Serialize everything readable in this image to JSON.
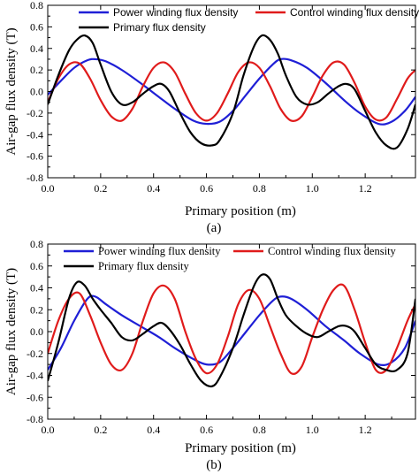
{
  "chart_data": [
    {
      "id": "a",
      "type": "line",
      "caption": "(a)",
      "xlabel": "Primary position (m)",
      "ylabel": "Air-gap flux density (T)",
      "xlim": [
        0,
        1.39
      ],
      "ylim": [
        -0.8,
        0.8
      ],
      "xticks": [
        0.0,
        0.2,
        0.4,
        0.6,
        0.8,
        1.0,
        1.2
      ],
      "xtick_labels": [
        "0.0",
        "0.2",
        "0.4",
        "0.6",
        "0.8",
        "1.0",
        "1.2"
      ],
      "yticks": [
        -0.8,
        -0.6,
        -0.4,
        -0.2,
        0.0,
        0.2,
        0.4,
        0.6,
        0.8
      ],
      "ytick_labels": [
        "-0.8",
        "-0.6",
        "-0.4",
        "-0.2",
        "0.0",
        "0.2",
        "0.4",
        "0.6",
        "0.8"
      ],
      "grid": false,
      "legend_placement": "top",
      "series": [
        {
          "name": "Power winding flux density",
          "color": "#1f1fd6",
          "x": [
            0.0,
            0.05,
            0.1,
            0.15,
            0.18,
            0.22,
            0.28,
            0.35,
            0.42,
            0.48,
            0.55,
            0.6,
            0.65,
            0.7,
            0.75,
            0.8,
            0.85,
            0.88,
            0.92,
            0.98,
            1.05,
            1.12,
            1.18,
            1.25,
            1.3,
            1.35,
            1.39
          ],
          "y": [
            -0.03,
            0.1,
            0.22,
            0.29,
            0.3,
            0.28,
            0.2,
            0.08,
            -0.05,
            -0.16,
            -0.27,
            -0.3,
            -0.28,
            -0.18,
            -0.03,
            0.12,
            0.25,
            0.3,
            0.29,
            0.22,
            0.08,
            -0.08,
            -0.2,
            -0.3,
            -0.28,
            -0.18,
            -0.05
          ]
        },
        {
          "name": "Control winding flux density",
          "color": "#e01b1b",
          "x": [
            0.0,
            0.04,
            0.08,
            0.12,
            0.16,
            0.2,
            0.24,
            0.28,
            0.32,
            0.36,
            0.4,
            0.44,
            0.48,
            0.52,
            0.56,
            0.6,
            0.64,
            0.68,
            0.72,
            0.76,
            0.8,
            0.84,
            0.88,
            0.92,
            0.96,
            1.0,
            1.04,
            1.08,
            1.12,
            1.16,
            1.2,
            1.24,
            1.28,
            1.32,
            1.36,
            1.39
          ],
          "y": [
            -0.1,
            0.12,
            0.25,
            0.26,
            0.12,
            -0.08,
            -0.23,
            -0.27,
            -0.16,
            0.05,
            0.22,
            0.27,
            0.18,
            -0.02,
            -0.2,
            -0.27,
            -0.2,
            -0.02,
            0.18,
            0.27,
            0.22,
            0.05,
            -0.16,
            -0.27,
            -0.23,
            -0.05,
            0.15,
            0.27,
            0.25,
            0.08,
            -0.14,
            -0.26,
            -0.24,
            -0.07,
            0.12,
            0.2
          ]
        },
        {
          "name": "Primary flux density",
          "color": "#000000",
          "x": [
            0.0,
            0.04,
            0.08,
            0.11,
            0.14,
            0.17,
            0.2,
            0.24,
            0.28,
            0.32,
            0.36,
            0.4,
            0.43,
            0.46,
            0.5,
            0.54,
            0.58,
            0.62,
            0.65,
            0.7,
            0.74,
            0.78,
            0.81,
            0.84,
            0.87,
            0.9,
            0.94,
            0.98,
            1.02,
            1.06,
            1.1,
            1.13,
            1.16,
            1.2,
            1.24,
            1.28,
            1.32,
            1.36,
            1.39
          ],
          "y": [
            -0.12,
            0.15,
            0.38,
            0.48,
            0.52,
            0.45,
            0.25,
            0.0,
            -0.12,
            -0.1,
            -0.02,
            0.05,
            0.07,
            0.0,
            -0.2,
            -0.38,
            -0.48,
            -0.5,
            -0.45,
            -0.2,
            0.15,
            0.42,
            0.52,
            0.48,
            0.35,
            0.15,
            -0.05,
            -0.12,
            -0.1,
            -0.02,
            0.05,
            0.07,
            0.02,
            -0.18,
            -0.38,
            -0.5,
            -0.52,
            -0.35,
            -0.12
          ]
        }
      ]
    },
    {
      "id": "b",
      "type": "line",
      "caption": "(b)",
      "xlabel": "Primary position (m)",
      "ylabel": "Air-gap flux density (T)",
      "xlim": [
        0,
        1.39
      ],
      "ylim": [
        -0.8,
        0.8
      ],
      "xticks": [
        0.0,
        0.2,
        0.4,
        0.6,
        0.8,
        1.0,
        1.2
      ],
      "xtick_labels": [
        "0.0",
        "0.2",
        "0.4",
        "0.6",
        "0.8",
        "1.0",
        "1.2"
      ],
      "yticks": [
        -0.8,
        -0.6,
        -0.4,
        -0.2,
        0.0,
        0.2,
        0.4,
        0.6,
        0.8
      ],
      "ytick_labels": [
        "-0.8",
        "-0.6",
        "-0.4",
        "-0.2",
        "0.0",
        "0.2",
        "0.4",
        "0.6",
        "0.8"
      ],
      "grid": false,
      "legend_placement": "top",
      "series": [
        {
          "name": "Power winding flux density",
          "color": "#1f1fd6",
          "x": [
            0.0,
            0.05,
            0.1,
            0.15,
            0.18,
            0.22,
            0.28,
            0.35,
            0.42,
            0.48,
            0.55,
            0.6,
            0.65,
            0.7,
            0.75,
            0.8,
            0.85,
            0.88,
            0.92,
            0.98,
            1.05,
            1.12,
            1.18,
            1.25,
            1.3,
            1.35,
            1.39
          ],
          "y": [
            -0.35,
            -0.15,
            0.1,
            0.3,
            0.32,
            0.25,
            0.15,
            0.05,
            -0.05,
            -0.15,
            -0.25,
            -0.3,
            -0.28,
            -0.15,
            0.0,
            0.15,
            0.28,
            0.32,
            0.3,
            0.2,
            0.05,
            -0.08,
            -0.2,
            -0.3,
            -0.28,
            -0.15,
            0.1
          ]
        },
        {
          "name": "Control winding flux density",
          "color": "#e01b1b",
          "x": [
            0.0,
            0.04,
            0.08,
            0.12,
            0.16,
            0.2,
            0.24,
            0.28,
            0.32,
            0.36,
            0.4,
            0.44,
            0.48,
            0.52,
            0.56,
            0.6,
            0.64,
            0.68,
            0.72,
            0.76,
            0.8,
            0.84,
            0.88,
            0.92,
            0.96,
            1.0,
            1.04,
            1.08,
            1.12,
            1.16,
            1.2,
            1.24,
            1.28,
            1.32,
            1.36,
            1.39
          ],
          "y": [
            -0.2,
            0.1,
            0.3,
            0.35,
            0.15,
            -0.1,
            -0.3,
            -0.35,
            -0.2,
            0.1,
            0.35,
            0.42,
            0.3,
            0.0,
            -0.25,
            -0.38,
            -0.3,
            -0.05,
            0.25,
            0.38,
            0.3,
            0.05,
            -0.2,
            -0.38,
            -0.32,
            -0.05,
            0.2,
            0.38,
            0.42,
            0.2,
            -0.1,
            -0.35,
            -0.35,
            -0.15,
            0.1,
            0.25
          ]
        },
        {
          "name": "Primary flux density",
          "color": "#000000",
          "x": [
            0.0,
            0.04,
            0.08,
            0.11,
            0.14,
            0.17,
            0.2,
            0.24,
            0.28,
            0.32,
            0.36,
            0.4,
            0.43,
            0.46,
            0.5,
            0.54,
            0.58,
            0.62,
            0.65,
            0.7,
            0.74,
            0.78,
            0.81,
            0.84,
            0.87,
            0.9,
            0.94,
            0.98,
            1.02,
            1.06,
            1.1,
            1.13,
            1.16,
            1.2,
            1.24,
            1.28,
            1.32,
            1.36,
            1.39
          ],
          "y": [
            -0.45,
            -0.1,
            0.3,
            0.45,
            0.42,
            0.3,
            0.2,
            0.08,
            -0.05,
            -0.08,
            -0.02,
            0.05,
            0.08,
            0.02,
            -0.12,
            -0.3,
            -0.45,
            -0.5,
            -0.42,
            -0.15,
            0.15,
            0.42,
            0.52,
            0.48,
            0.3,
            0.15,
            0.05,
            -0.02,
            -0.05,
            0.0,
            0.05,
            0.05,
            0.0,
            -0.15,
            -0.3,
            -0.35,
            -0.35,
            -0.2,
            0.3
          ]
        }
      ]
    }
  ]
}
